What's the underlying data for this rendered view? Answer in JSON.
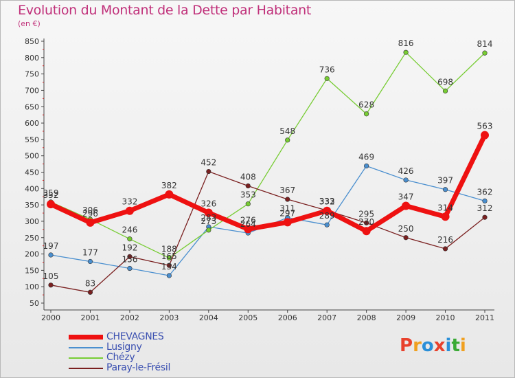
{
  "title": "Evolution du Montant de la Dette par Habitant",
  "unit_label": "(en €)",
  "logo": {
    "text": "Proxiti",
    "letters": [
      {
        "ch": "P",
        "color": "#e8412c"
      },
      {
        "ch": "r",
        "color": "#f0a020"
      },
      {
        "ch": "o",
        "color": "#2a8fd8"
      },
      {
        "ch": "x",
        "color": "#e8412c"
      },
      {
        "ch": "i",
        "color": "#2a8fd8"
      },
      {
        "ch": "t",
        "color": "#3aaa35"
      },
      {
        "ch": "i",
        "color": "#f0a020"
      }
    ]
  },
  "chart_data": {
    "type": "line",
    "title": "Evolution du Montant de la Dette par Habitant",
    "ylabel": "(en €)",
    "xlabel": "",
    "x": [
      "2000",
      "2001",
      "2002",
      "2003",
      "2004",
      "2005",
      "2006",
      "2007",
      "2008",
      "2009",
      "2010",
      "2011"
    ],
    "ylim": [
      50,
      850
    ],
    "yticks": [
      50,
      100,
      150,
      200,
      250,
      300,
      350,
      400,
      450,
      500,
      550,
      600,
      650,
      700,
      750,
      800,
      850
    ],
    "grid": false,
    "legend_position": "bottom-left",
    "series": [
      {
        "name": "CHEVAGNES",
        "color": "#ee1111",
        "emphasis": true,
        "values": [
          352,
          296,
          332,
          382,
          326,
          276,
          297,
          332,
          270,
          347,
          314,
          563
        ],
        "labels": [
          "352",
          "296",
          "332",
          "382",
          "326",
          "276",
          "297",
          "332",
          "270",
          "347",
          "314",
          "563"
        ]
      },
      {
        "name": "Lusigny",
        "color": "#4a8fcf",
        "values": [
          197,
          177,
          156,
          134,
          283,
          264,
          311,
          289,
          469,
          426,
          397,
          362
        ],
        "labels": [
          "197",
          "177",
          "156",
          "134",
          "283",
          "264",
          "311",
          "289",
          "469",
          "426",
          "397",
          "362"
        ]
      },
      {
        "name": "Chézy",
        "color": "#77cc33",
        "values": [
          359,
          306,
          246,
          188,
          273,
          353,
          548,
          736,
          628,
          816,
          698,
          814
        ],
        "labels": [
          "359",
          "306",
          "246",
          "188",
          "273",
          "353",
          "548",
          "736",
          "628",
          "816",
          "698",
          "814"
        ]
      },
      {
        "name": "Paray-le-Frésil",
        "color": "#7a2020",
        "values": [
          105,
          83,
          192,
          165,
          452,
          408,
          367,
          333,
          295,
          250,
          216,
          312
        ],
        "labels": [
          "105",
          "83",
          "192",
          "165",
          "452",
          "408",
          "367",
          "333",
          "295",
          "250",
          "216",
          "312"
        ]
      }
    ]
  }
}
